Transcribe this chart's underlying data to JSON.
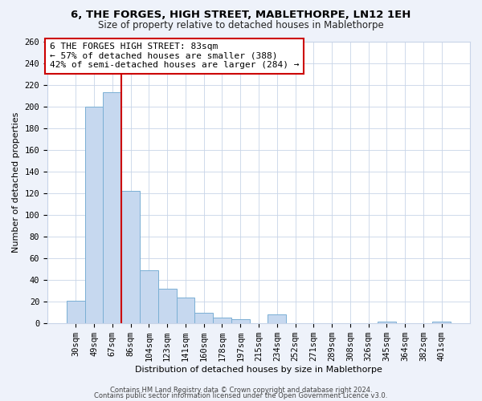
{
  "title": "6, THE FORGES, HIGH STREET, MABLETHORPE, LN12 1EH",
  "subtitle": "Size of property relative to detached houses in Mablethorpe",
  "xlabel": "Distribution of detached houses by size in Mablethorpe",
  "ylabel": "Number of detached properties",
  "bar_labels": [
    "30sqm",
    "49sqm",
    "67sqm",
    "86sqm",
    "104sqm",
    "123sqm",
    "141sqm",
    "160sqm",
    "178sqm",
    "197sqm",
    "215sqm",
    "234sqm",
    "252sqm",
    "271sqm",
    "289sqm",
    "308sqm",
    "326sqm",
    "345sqm",
    "364sqm",
    "382sqm",
    "401sqm"
  ],
  "bar_values": [
    21,
    200,
    213,
    122,
    49,
    32,
    24,
    10,
    5,
    4,
    0,
    8,
    0,
    0,
    0,
    0,
    0,
    2,
    0,
    0,
    2
  ],
  "bar_color": "#c6d8ef",
  "bar_edge_color": "#7aafd4",
  "vline_x": 2.5,
  "vline_color": "#cc0000",
  "annotation_text": "6 THE FORGES HIGH STREET: 83sqm\n← 57% of detached houses are smaller (388)\n42% of semi-detached houses are larger (284) →",
  "annotation_box_edge": "#cc0000",
  "ylim": [
    0,
    260
  ],
  "yticks": [
    0,
    20,
    40,
    60,
    80,
    100,
    120,
    140,
    160,
    180,
    200,
    220,
    240,
    260
  ],
  "footer_line1": "Contains HM Land Registry data © Crown copyright and database right 2024.",
  "footer_line2": "Contains public sector information licensed under the Open Government Licence v3.0.",
  "bg_color": "#eef2fa",
  "plot_bg_color": "#ffffff",
  "grid_color": "#c8d4e8",
  "title_fontsize": 9.5,
  "subtitle_fontsize": 8.5,
  "axis_label_fontsize": 8.0,
  "tick_fontsize": 7.5,
  "annotation_fontsize": 8.0,
  "footer_fontsize": 6.0
}
